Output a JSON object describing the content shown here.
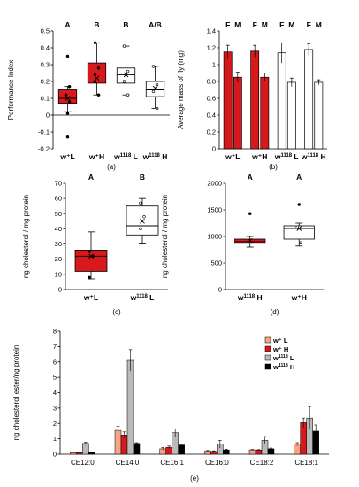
{
  "chart_data": [
    {
      "type": "box",
      "panel_label": "(a)",
      "ylabel": "Performance Index",
      "ylim": [
        -0.2,
        0.5
      ],
      "yticks": [
        -0.2,
        -0.1,
        0,
        0.1,
        0.2,
        0.3,
        0.4,
        0.5
      ],
      "categories": [
        "w⁺L",
        "w⁺H",
        "w1118 L",
        "w1118 H"
      ],
      "group_letters": [
        "A",
        "B",
        "B",
        "A/B"
      ],
      "fill_colors": [
        "#d7191c",
        "#d7191c",
        "#ffffff",
        "#ffffff"
      ],
      "boxes": [
        {
          "whisker_low": 0.02,
          "q1": 0.07,
          "median": 0.1,
          "q3": 0.15,
          "whisker_high": 0.17,
          "mean": 0.1,
          "points": [
            0.35,
            0.01,
            -0.13,
            0.17,
            0.12,
            0.08
          ]
        },
        {
          "whisker_low": 0.12,
          "q1": 0.19,
          "median": 0.25,
          "q3": 0.31,
          "whisker_high": 0.43,
          "mean": 0.22,
          "points": [
            0.43,
            0.12,
            0.2,
            0.28,
            0.24
          ]
        },
        {
          "whisker_low": 0.12,
          "q1": 0.19,
          "median": 0.24,
          "q3": 0.28,
          "whisker_high": 0.41,
          "mean": 0.24,
          "points": [
            0.41,
            0.12,
            0.2,
            0.26
          ]
        },
        {
          "whisker_low": 0.04,
          "q1": 0.11,
          "median": 0.15,
          "q3": 0.2,
          "whisker_high": 0.29,
          "mean": 0.16,
          "points": [
            0.29,
            0.04,
            0.14,
            0.18
          ]
        }
      ]
    },
    {
      "type": "bar",
      "panel_label": "(b)",
      "ylabel": "Average mass of fly (mg)",
      "ylim": [
        0,
        1.4
      ],
      "yticks": [
        0,
        0.2,
        0.4,
        0.6,
        0.8,
        1,
        1.2,
        1.4
      ],
      "categories": [
        "w⁺L",
        "w⁺H",
        "w1118 L",
        "w1118 H"
      ],
      "sex_labels": [
        "F",
        "M"
      ],
      "fill_colors": [
        "#d7191c",
        "#d7191c",
        "#ffffff",
        "#ffffff"
      ],
      "series": [
        {
          "name": "F",
          "values": [
            1.15,
            1.16,
            1.14,
            1.18
          ],
          "errors": [
            0.08,
            0.07,
            0.12,
            0.07
          ]
        },
        {
          "name": "M",
          "values": [
            0.85,
            0.85,
            0.79,
            0.79
          ],
          "errors": [
            0.06,
            0.05,
            0.05,
            0.03
          ]
        }
      ]
    },
    {
      "type": "box",
      "panel_label": "(c)",
      "ylabel": "ng cholesterol / mg protein",
      "ylim": [
        0,
        70
      ],
      "yticks": [
        0,
        10,
        20,
        30,
        40,
        50,
        60,
        70
      ],
      "categories": [
        "w⁺L",
        "w1118 L"
      ],
      "group_letters": [
        "A",
        "B"
      ],
      "fill_colors": [
        "#d7191c",
        "#ffffff"
      ],
      "boxes": [
        {
          "whisker_low": 7,
          "q1": 12,
          "median": 22,
          "q3": 26,
          "whisker_high": 38,
          "mean": 22,
          "points": [
            8,
            22,
            25
          ]
        },
        {
          "whisker_low": 30,
          "q1": 36,
          "median": 42,
          "q3": 55,
          "whisker_high": 60,
          "mean": 45,
          "points": [
            40,
            48,
            57
          ]
        }
      ]
    },
    {
      "type": "box",
      "panel_label": "(d)",
      "ylabel": "ng cholesterol / mg protein",
      "ylim": [
        0,
        2000
      ],
      "yticks": [
        0,
        500,
        1000,
        1500,
        2000
      ],
      "categories": [
        "w1118 H",
        "w⁺H"
      ],
      "group_letters": [
        "A",
        "A"
      ],
      "fill_colors": [
        "#d7191c",
        "#ffffff"
      ],
      "boxes": [
        {
          "whisker_low": 800,
          "q1": 870,
          "median": 900,
          "q3": 950,
          "whisker_high": 1000,
          "mean": 920,
          "points": [
            1430
          ]
        },
        {
          "whisker_low": 820,
          "q1": 950,
          "median": 1150,
          "q3": 1200,
          "whisker_high": 1250,
          "mean": 1150,
          "points": [
            1600,
            880,
            1180
          ]
        }
      ]
    },
    {
      "type": "bar",
      "panel_label": "(e)",
      "ylabel": "ng cholesterol ester/ng protein",
      "ylim": [
        0,
        8
      ],
      "yticks": [
        0,
        1,
        2,
        3,
        4,
        5,
        6,
        7,
        8
      ],
      "categories": [
        "CE12:0",
        "CE14:0",
        "CE16:1",
        "CE16:0",
        "CE18:2",
        "CE18:1"
      ],
      "legend": {
        "position": "top-right",
        "entries": [
          "w⁺ L",
          "w⁺ H",
          "w1118 L",
          "w1118 H"
        ]
      },
      "series": [
        {
          "name": "w⁺ L",
          "color": "#f4a582",
          "values": [
            0.1,
            1.55,
            0.35,
            0.2,
            0.28,
            0.65
          ],
          "errors": [
            0.02,
            0.25,
            0.08,
            0.04,
            0.03,
            0.1
          ]
        },
        {
          "name": "w⁺ H",
          "color": "#d7191c",
          "values": [
            0.1,
            1.25,
            0.45,
            0.18,
            0.27,
            2.05
          ],
          "errors": [
            0.02,
            0.2,
            0.08,
            0.04,
            0.03,
            0.3
          ]
        },
        {
          "name": "w1118 L",
          "color": "#bababa",
          "values": [
            0.7,
            6.1,
            1.4,
            0.65,
            0.9,
            2.35
          ],
          "errors": [
            0.08,
            0.7,
            0.25,
            0.25,
            0.25,
            0.75
          ]
        },
        {
          "name": "w1118 H",
          "color": "#000000",
          "values": [
            0.1,
            0.7,
            0.6,
            0.28,
            0.35,
            1.5
          ],
          "errors": [
            0.02,
            0.05,
            0.06,
            0.05,
            0.05,
            0.4
          ]
        }
      ]
    }
  ]
}
